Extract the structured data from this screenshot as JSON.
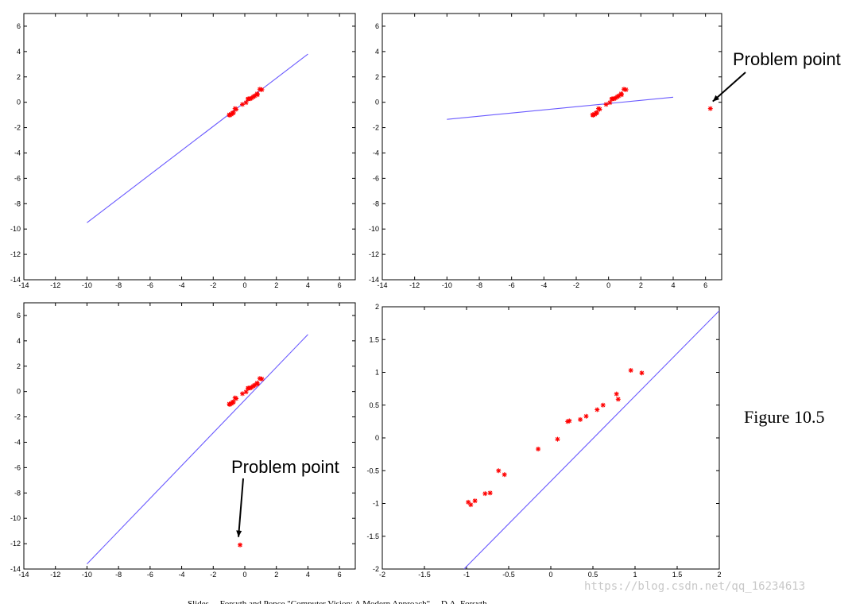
{
  "figure_caption": "Figure 10.5",
  "watermark": "https://blog.csdn.net/qq_16234613",
  "footer": "Slides ... Forsyth and Ponce \"Computer Vision: A Modern Approach\" ... D.A. Forsyth",
  "colors": {
    "line": "#6a5aff",
    "marker": "#ff0000",
    "axes": "#000000"
  },
  "chart_data": [
    {
      "type": "scatter",
      "title": "",
      "xlabel": "",
      "ylabel": "",
      "xlim": [
        -14,
        7
      ],
      "ylim": [
        -14,
        7
      ],
      "xticks": [
        -14,
        -12,
        -10,
        -8,
        -6,
        -4,
        -2,
        0,
        2,
        4,
        6
      ],
      "yticks": [
        6,
        4,
        2,
        0,
        -2,
        -4,
        -6,
        -8,
        -10,
        -12,
        -14
      ],
      "grid": false,
      "points": [
        {
          "x": -0.98,
          "y": -0.98
        },
        {
          "x": -0.95,
          "y": -1.02
        },
        {
          "x": -0.85,
          "y": -0.95
        },
        {
          "x": -0.78,
          "y": -0.85
        },
        {
          "x": -0.72,
          "y": -0.83
        },
        {
          "x": -0.62,
          "y": -0.5
        },
        {
          "x": -0.55,
          "y": -0.55
        },
        {
          "x": -0.15,
          "y": -0.17
        },
        {
          "x": 0.08,
          "y": -0.03
        },
        {
          "x": 0.2,
          "y": 0.25
        },
        {
          "x": 0.22,
          "y": 0.27
        },
        {
          "x": 0.35,
          "y": 0.28
        },
        {
          "x": 0.42,
          "y": 0.33
        },
        {
          "x": 0.55,
          "y": 0.43
        },
        {
          "x": 0.62,
          "y": 0.5
        },
        {
          "x": 0.78,
          "y": 0.67
        },
        {
          "x": 0.8,
          "y": 0.59
        },
        {
          "x": 0.95,
          "y": 1.03
        },
        {
          "x": 1.08,
          "y": 0.99
        }
      ],
      "line": {
        "x": [
          -10,
          4
        ],
        "y": [
          -9.5,
          3.8
        ]
      },
      "annotation": null
    },
    {
      "type": "scatter",
      "title": "",
      "xlabel": "",
      "ylabel": "",
      "xlim": [
        -14,
        7
      ],
      "ylim": [
        -14,
        7
      ],
      "xticks": [
        -14,
        -12,
        -10,
        -8,
        -6,
        -4,
        -2,
        0,
        2,
        4,
        6
      ],
      "yticks": [
        6,
        4,
        2,
        0,
        -2,
        -4,
        -6,
        -8,
        -10,
        -12,
        -14
      ],
      "grid": false,
      "points": [
        {
          "x": -0.98,
          "y": -0.98
        },
        {
          "x": -0.95,
          "y": -1.02
        },
        {
          "x": -0.85,
          "y": -0.95
        },
        {
          "x": -0.78,
          "y": -0.85
        },
        {
          "x": -0.72,
          "y": -0.83
        },
        {
          "x": -0.62,
          "y": -0.5
        },
        {
          "x": -0.55,
          "y": -0.55
        },
        {
          "x": -0.15,
          "y": -0.17
        },
        {
          "x": 0.08,
          "y": -0.03
        },
        {
          "x": 0.2,
          "y": 0.25
        },
        {
          "x": 0.22,
          "y": 0.27
        },
        {
          "x": 0.35,
          "y": 0.28
        },
        {
          "x": 0.42,
          "y": 0.33
        },
        {
          "x": 0.55,
          "y": 0.43
        },
        {
          "x": 0.62,
          "y": 0.5
        },
        {
          "x": 0.78,
          "y": 0.67
        },
        {
          "x": 0.8,
          "y": 0.59
        },
        {
          "x": 0.95,
          "y": 1.03
        },
        {
          "x": 1.08,
          "y": 0.99
        },
        {
          "x": 6.3,
          "y": -0.5
        }
      ],
      "line": {
        "x": [
          -10,
          4
        ],
        "y": [
          -1.35,
          0.4
        ]
      },
      "annotation": {
        "text": "Problem point",
        "point": {
          "x": 6.3,
          "y": -0.5
        }
      }
    },
    {
      "type": "scatter",
      "title": "",
      "xlabel": "",
      "ylabel": "",
      "xlim": [
        -14,
        7
      ],
      "ylim": [
        -14,
        7
      ],
      "xticks": [
        -14,
        -12,
        -10,
        -8,
        -6,
        -4,
        -2,
        0,
        2,
        4,
        6
      ],
      "yticks": [
        6,
        4,
        2,
        0,
        -2,
        -4,
        -6,
        -8,
        -10,
        -12,
        -14
      ],
      "grid": false,
      "points": [
        {
          "x": -0.98,
          "y": -0.98
        },
        {
          "x": -0.95,
          "y": -1.02
        },
        {
          "x": -0.85,
          "y": -0.95
        },
        {
          "x": -0.78,
          "y": -0.85
        },
        {
          "x": -0.72,
          "y": -0.83
        },
        {
          "x": -0.62,
          "y": -0.5
        },
        {
          "x": -0.55,
          "y": -0.55
        },
        {
          "x": -0.15,
          "y": -0.17
        },
        {
          "x": 0.08,
          "y": -0.03
        },
        {
          "x": 0.2,
          "y": 0.25
        },
        {
          "x": 0.22,
          "y": 0.27
        },
        {
          "x": 0.35,
          "y": 0.28
        },
        {
          "x": 0.42,
          "y": 0.33
        },
        {
          "x": 0.55,
          "y": 0.43
        },
        {
          "x": 0.62,
          "y": 0.5
        },
        {
          "x": 0.78,
          "y": 0.67
        },
        {
          "x": 0.8,
          "y": 0.59
        },
        {
          "x": 0.95,
          "y": 1.03
        },
        {
          "x": 1.08,
          "y": 0.99
        },
        {
          "x": -0.3,
          "y": -12.1
        }
      ],
      "line": {
        "x": [
          -10,
          4
        ],
        "y": [
          -13.6,
          4.5
        ]
      },
      "annotation": {
        "text": "Problem point",
        "point": {
          "x": -0.3,
          "y": -12.1
        }
      }
    },
    {
      "type": "scatter",
      "title": "",
      "xlabel": "",
      "ylabel": "",
      "xlim": [
        -2,
        2
      ],
      "ylim": [
        -2,
        2
      ],
      "xticks": [
        -2,
        -1.5,
        -1,
        -0.5,
        0,
        0.5,
        1,
        1.5,
        2
      ],
      "yticks": [
        2,
        1.5,
        1,
        0.5,
        0,
        -0.5,
        -1,
        -1.5,
        -2
      ],
      "grid": false,
      "points": [
        {
          "x": -0.98,
          "y": -0.98
        },
        {
          "x": -0.95,
          "y": -1.02
        },
        {
          "x": -0.9,
          "y": -0.96
        },
        {
          "x": -0.78,
          "y": -0.85
        },
        {
          "x": -0.72,
          "y": -0.84
        },
        {
          "x": -0.62,
          "y": -0.5
        },
        {
          "x": -0.55,
          "y": -0.56
        },
        {
          "x": -0.15,
          "y": -0.17
        },
        {
          "x": 0.08,
          "y": -0.02
        },
        {
          "x": 0.2,
          "y": 0.25
        },
        {
          "x": 0.22,
          "y": 0.26
        },
        {
          "x": 0.35,
          "y": 0.28
        },
        {
          "x": 0.42,
          "y": 0.33
        },
        {
          "x": 0.55,
          "y": 0.43
        },
        {
          "x": 0.62,
          "y": 0.5
        },
        {
          "x": 0.78,
          "y": 0.67
        },
        {
          "x": 0.8,
          "y": 0.59
        },
        {
          "x": 0.95,
          "y": 1.03
        },
        {
          "x": 1.08,
          "y": 0.99
        }
      ],
      "line": {
        "x": [
          -1.03,
          2
        ],
        "y": [
          -2,
          1.94
        ]
      },
      "annotation": null
    }
  ]
}
